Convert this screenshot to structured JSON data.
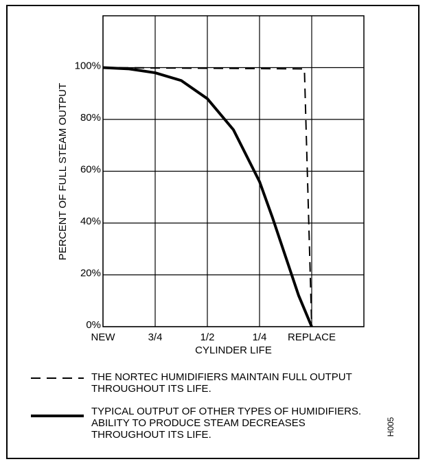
{
  "chart_data": {
    "type": "line",
    "ylabel": "PERCENT OF FULL STEAM OUTPUT",
    "xlabel": "CYLINDER LIFE",
    "code": "H005",
    "xlim": [
      0,
      5
    ],
    "xticks": [
      {
        "value": 0,
        "label": "NEW"
      },
      {
        "value": 1,
        "label": "3/4"
      },
      {
        "value": 2,
        "label": "1/2"
      },
      {
        "value": 3,
        "label": "1/4"
      },
      {
        "value": 4,
        "label": "REPLACE"
      }
    ],
    "ylim": [
      0,
      120
    ],
    "yticks": [
      {
        "value": 0,
        "label": "0%"
      },
      {
        "value": 20,
        "label": "20%"
      },
      {
        "value": 40,
        "label": "40%"
      },
      {
        "value": 60,
        "label": "60%"
      },
      {
        "value": 80,
        "label": "80%"
      },
      {
        "value": 100,
        "label": "100%"
      }
    ],
    "grid": true,
    "series": [
      {
        "name": "THE NORTEC HUMIDIFIERS MAINTAIN FULL OUTPUT THROUGHOUT ITS LIFE.",
        "color": "#000000",
        "style": "dashed",
        "x": [
          0,
          3.86,
          4.0
        ],
        "values": [
          100,
          99.5,
          0
        ]
      },
      {
        "name": "TYPICAL OUTPUT OF OTHER TYPES OF HUMIDIFIERS.  ABILITY TO PRODUCE STEAM DECREASES THROUGHOUT ITS LIFE.",
        "color": "#000000",
        "style": "solid",
        "x": [
          0,
          0.5,
          1,
          1.5,
          2,
          2.5,
          3,
          3.25,
          3.5,
          3.75,
          4
        ],
        "values": [
          100,
          99.5,
          98,
          95,
          88,
          76,
          56,
          42,
          27,
          12,
          0
        ]
      }
    ]
  }
}
